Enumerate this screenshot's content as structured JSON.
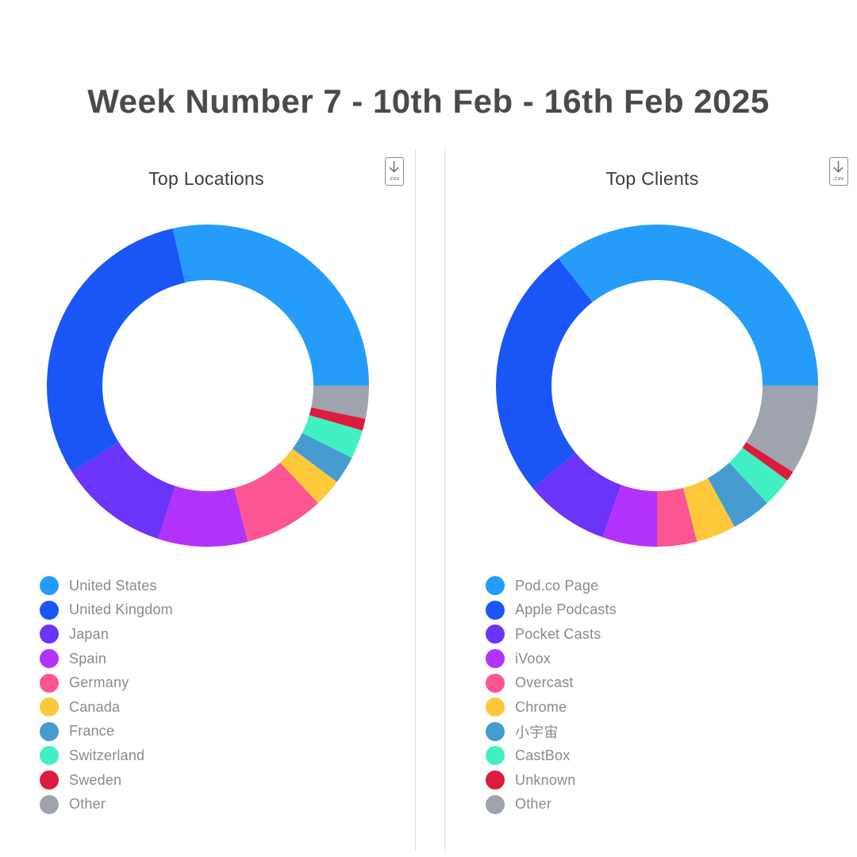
{
  "header": {
    "title": "Week Number 7 - 10th Feb - 16th Feb 2025"
  },
  "csv_icon_label": ".csv",
  "chart_data": [
    {
      "type": "pie",
      "style": "donut",
      "title": "Top Locations",
      "legend_position": "bottom-left",
      "categories": [
        "United States",
        "United Kingdom",
        "Japan",
        "Spain",
        "Germany",
        "Canada",
        "France",
        "Switzerland",
        "Sweden",
        "Other"
      ],
      "values": [
        28.5,
        30.5,
        11.0,
        9.0,
        8.0,
        2.8,
        2.8,
        2.9,
        1.2,
        3.3
      ],
      "colors": [
        "#259cf9",
        "#1a56f6",
        "#6c33f9",
        "#b233fc",
        "#fb5693",
        "#fdc93a",
        "#469ccf",
        "#41f1c4",
        "#dc1c3c",
        "#9ea3ad"
      ]
    },
    {
      "type": "pie",
      "style": "donut",
      "title": "Top Clients",
      "legend_position": "bottom-left",
      "categories": [
        "Pod.co Page",
        "Apple Podcasts",
        "Pocket Casts",
        "iVoox",
        "Overcast",
        "Chrome",
        "小宇宙",
        "CastBox",
        "Unknown",
        "Other"
      ],
      "values": [
        35.5,
        25.5,
        8.5,
        5.5,
        4.0,
        4.0,
        4.0,
        3.0,
        1.0,
        9.0
      ],
      "colors": [
        "#259cf9",
        "#1a56f6",
        "#6c33f9",
        "#b233fc",
        "#fb5693",
        "#fdc93a",
        "#469ccf",
        "#41f1c4",
        "#dc1c3c",
        "#9ea3ad"
      ]
    }
  ]
}
